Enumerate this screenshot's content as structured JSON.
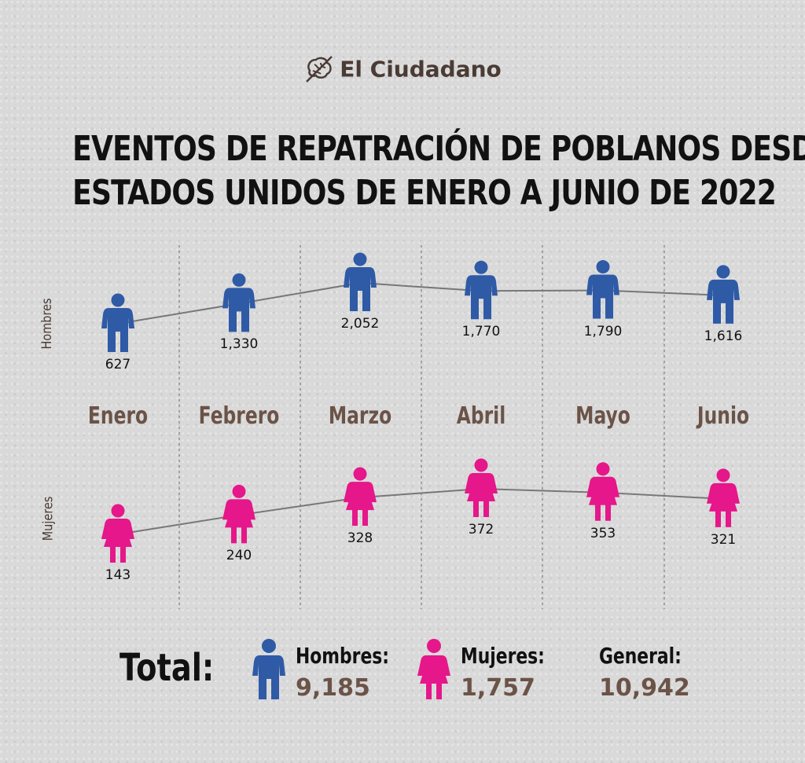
{
  "brand": {
    "name": "El Ciudadano"
  },
  "colors": {
    "hombres": "#2f5aa6",
    "mujeres": "#e5178a",
    "line": "#777777",
    "month": "#6b5348"
  },
  "chart_data": {
    "type": "line",
    "title": "EVENTOS DE REPATRACIÓN DE POBLANOS DESDE ESTADOS UNIDOS DE ENERO A JUNIO DE 2022",
    "title_lines": [
      "EVENTOS DE REPATRACIÓN DE POBLANOS DESDE",
      "ESTADOS UNIDOS DE ENERO A JUNIO DE 2022"
    ],
    "categories": [
      "Enero",
      "Febrero",
      "Marzo",
      "Abril",
      "Mayo",
      "Junio"
    ],
    "series": [
      {
        "name": "Hombres",
        "values": [
          627,
          1330,
          2052,
          1770,
          1790,
          1616
        ],
        "labels": [
          "627",
          "1,330",
          "2,052",
          "1,770",
          "1,790",
          "1,616"
        ]
      },
      {
        "name": "Mujeres",
        "values": [
          143,
          240,
          328,
          372,
          353,
          321
        ],
        "labels": [
          "143",
          "240",
          "328",
          "372",
          "353",
          "321"
        ]
      }
    ]
  },
  "totals": {
    "label": "Total:",
    "hombres": {
      "name": "Hombres:",
      "value": "9,185"
    },
    "mujeres": {
      "name": "Mujeres:",
      "value": "1,757"
    },
    "general": {
      "name": "General:",
      "value": "10,942"
    }
  }
}
